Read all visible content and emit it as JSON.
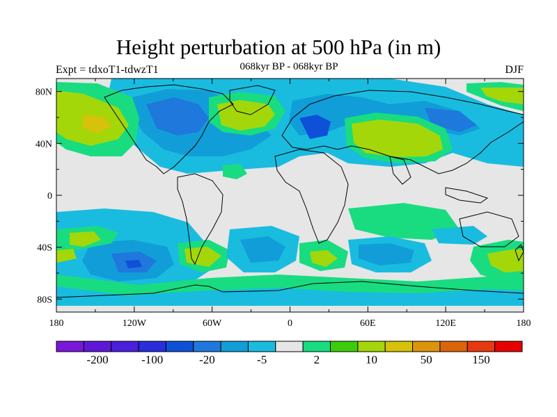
{
  "title": "Height perturbation at 500 hPa (in m)",
  "subtitle": "068kyr BP - 068kyr BP",
  "experiment": "Expt = tdxoT1-tdwzT1",
  "season": "DJF",
  "axes": {
    "lat_ticks": [
      "80N",
      "40N",
      "0",
      "40S",
      "80S"
    ],
    "lon_ticks": [
      "180",
      "120W",
      "60W",
      "0",
      "60E",
      "120E",
      "180"
    ]
  },
  "colorbar": {
    "colors": [
      "#7a17d8",
      "#5f17d8",
      "#4a1fdc",
      "#2a2ddc",
      "#0f50d8",
      "#1f78dc",
      "#119ed8",
      "#19bcdf",
      "#e6e6e6",
      "#19dc80",
      "#3ccc0c",
      "#a3d70a",
      "#d6c20a",
      "#dc940a",
      "#dc640a",
      "#e6390f",
      "#e60000"
    ],
    "labels": [
      "-200",
      "-100",
      "-20",
      "-5",
      "2",
      "10",
      "50",
      "150"
    ]
  }
}
